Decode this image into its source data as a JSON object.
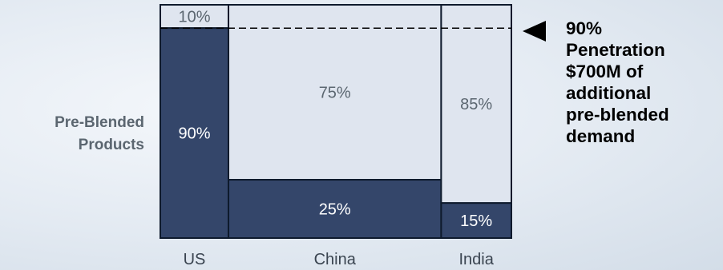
{
  "chart_data": {
    "type": "mekko",
    "ylabel": "Pre-Blended Products",
    "categories": [
      "US",
      "China",
      "India"
    ],
    "column_width_share": [
      0.165,
      0.515,
      0.17
    ],
    "series": [
      {
        "name": "",
        "values": [
          90,
          25,
          15
        ],
        "color": "#34466a"
      },
      {
        "name": "",
        "values": [
          10,
          75,
          85
        ],
        "color": "#dfe5ef"
      }
    ],
    "value_labels": {
      "top": [
        "10%",
        "75%",
        "85%"
      ],
      "bottom": [
        "90%",
        "25%",
        "15%"
      ]
    },
    "reference_line": {
      "value": 90,
      "style": "dashed"
    }
  },
  "callout": {
    "lines": [
      "90%",
      "Penetration",
      "$700M of",
      "additional",
      "pre-blended",
      "demand"
    ]
  },
  "colors": {
    "dark": "#34466a",
    "light": "#dfe5ef",
    "label_gray": "#5b6670",
    "text_on_dark": "#ffffff"
  }
}
